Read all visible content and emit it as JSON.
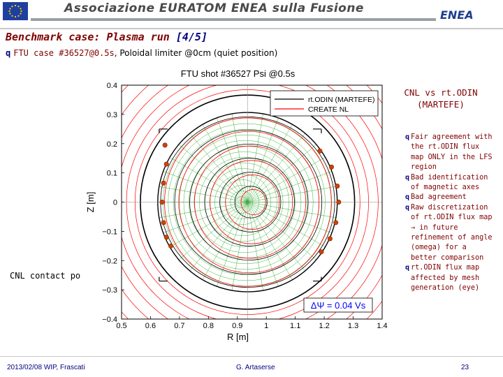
{
  "banner": {
    "title": "Associazione EURATOM ENEA sulla Fusione",
    "logo_text": "ENEA"
  },
  "slide": {
    "title_main": "Benchmark case: Plasma run ",
    "title_page": "[4/5]",
    "subtitle_bullet": "q",
    "subtitle_mono": "FTU case #36527@0.5s",
    "subtitle_plain": ", Poloidal limiter @0cm (quiet position)"
  },
  "side": {
    "title_line1": "CNL vs rt.ODIN",
    "title_line2": "(MARTEFE)",
    "notes": [
      {
        "bullet": "q",
        "text": "Fair agreement with the rt.ODIN flux map ONLY in the LFS region"
      },
      {
        "bullet": "q",
        "text": "Bad identification of magnetic axes"
      },
      {
        "bullet": "q",
        "text": "Bad agreement"
      },
      {
        "bullet": "q",
        "text": "Raw discretization of rt.ODIN flux map → in future refinement of angle (omega) for a better comparison"
      },
      {
        "bullet": "q",
        "text": "rt.ODIN flux map affected by mesh generation (eye)"
      }
    ],
    "contact": "CNL contact po"
  },
  "footer": {
    "date": "2013/02/08   WIP, Frascati",
    "author": "G. Artaserse",
    "page": "23"
  },
  "chart_data": {
    "type": "line",
    "title": "FTU shot #36527 Psi @0.5s",
    "xlabel": "R [m]",
    "ylabel": "Z [m]",
    "xlim": [
      0.5,
      1.4
    ],
    "ylim": [
      -0.4,
      0.4
    ],
    "xticks": [
      0.5,
      0.6,
      0.7,
      0.8,
      0.9,
      1,
      1.1,
      1.2,
      1.3,
      1.4
    ],
    "yticks": [
      0.4,
      0.3,
      0.2,
      0.1,
      0,
      -0.1,
      -0.2,
      -0.3,
      -0.4
    ],
    "xtick_labels": [
      "0.5",
      "0.6",
      "0.7",
      "0.8",
      "0.9",
      "1",
      "1.1",
      "1.2",
      "1.3",
      "1.4"
    ],
    "ytick_labels": [
      "0.4",
      "0.3",
      "0.2",
      "0.1",
      "0",
      "−0.1",
      "−0.2",
      "−0.3",
      "−0.4"
    ],
    "legend": [
      {
        "name": "rt.ODIN (MARTEFE)",
        "color": "#000000"
      },
      {
        "name": "CREATE NL",
        "color": "#ff0000"
      }
    ],
    "legend_placement": "top-right",
    "annotation": "ΔΨ = 0.04 Vs",
    "annotation_color": "#0000ff",
    "center": [
      0.935,
      0.0
    ],
    "limiter_radius": 0.31,
    "chamber_radius": 0.37,
    "markers_color": "#cc4400",
    "markers": [
      [
        1.185,
        0.175
      ],
      [
        1.225,
        0.12
      ],
      [
        1.245,
        0.055
      ],
      [
        1.25,
        0.0
      ],
      [
        1.24,
        -0.07
      ],
      [
        1.22,
        -0.125
      ],
      [
        1.19,
        -0.17
      ],
      [
        0.65,
        0.195
      ],
      [
        0.655,
        0.13
      ],
      [
        0.645,
        0.065
      ],
      [
        0.64,
        0.0
      ],
      [
        0.645,
        -0.07
      ],
      [
        0.655,
        -0.12
      ],
      [
        0.67,
        -0.15
      ]
    ],
    "grid_color": "#22aa22",
    "contour_color": "#ff0000"
  }
}
